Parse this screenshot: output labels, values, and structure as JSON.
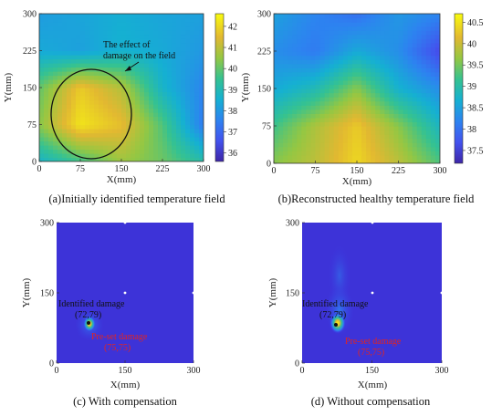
{
  "chart_data": [
    {
      "type": "heatmap",
      "panel": "a",
      "caption": "(a)Initially identified temperature field",
      "xlabel": "X(mm)",
      "ylabel": "Y(mm)",
      "xlim": [
        0,
        300
      ],
      "ylim": [
        0,
        300
      ],
      "xticks": [
        "0",
        "75",
        "150",
        "225",
        "300"
      ],
      "yticks": [
        "0",
        "75",
        "150",
        "225",
        "300"
      ],
      "colorbar_ticks": [
        "36",
        "37",
        "38",
        "39",
        "40",
        "41",
        "42"
      ],
      "colorbar_range": [
        35.6,
        42.6
      ],
      "grid_x": [
        0,
        75,
        150,
        225,
        300
      ],
      "grid_y": [
        0,
        75,
        150,
        225,
        300
      ],
      "values": [
        [
          38.7,
          39.6,
          40.6,
          40.1,
          39.2
        ],
        [
          40.4,
          42.2,
          41.6,
          39.8,
          37.4
        ],
        [
          40.0,
          41.8,
          40.9,
          38.7,
          37.6
        ],
        [
          38.4,
          38.2,
          38.6,
          38.4,
          38.0
        ],
        [
          38.1,
          38.3,
          38.5,
          38.3,
          38.2
        ]
      ],
      "annotation": [
        "The effect of",
        "damage on the field"
      ]
    },
    {
      "type": "heatmap",
      "panel": "b",
      "caption": "(b)Reconstructed healthy temperature field",
      "xlabel": "X(mm)",
      "ylabel": "Y(mm)",
      "xlim": [
        0,
        300
      ],
      "ylim": [
        0,
        300
      ],
      "xticks": [
        "0",
        "75",
        "150",
        "225",
        "300"
      ],
      "yticks": [
        "0",
        "75",
        "150",
        "225",
        "300"
      ],
      "colorbar_ticks": [
        "37.5",
        "38",
        "38.5",
        "39",
        "39.5",
        "40",
        "40.5"
      ],
      "colorbar_range": [
        37.2,
        40.7
      ],
      "grid_x": [
        0,
        75,
        150,
        225,
        300
      ],
      "grid_y": [
        0,
        75,
        150,
        225,
        300
      ],
      "values": [
        [
          39.6,
          39.9,
          40.4,
          39.9,
          39.3
        ],
        [
          39.2,
          39.8,
          40.3,
          39.6,
          38.8
        ],
        [
          38.6,
          38.9,
          39.6,
          38.7,
          38.3
        ],
        [
          38.3,
          38.1,
          38.6,
          38.3,
          37.6
        ],
        [
          38.5,
          38.2,
          38.0,
          38.4,
          38.2
        ]
      ]
    },
    {
      "type": "heatmap",
      "panel": "c",
      "caption": "(c) With compensation",
      "xlabel": "X(mm)",
      "ylabel": "Y(mm)",
      "xlim": [
        0,
        300
      ],
      "ylim": [
        0,
        300
      ],
      "xticks": [
        "0",
        "150",
        "300"
      ],
      "yticks": [
        "0",
        "150",
        "300"
      ],
      "identified_damage": {
        "x": 72,
        "y": 79,
        "label": "Identified damage",
        "coord": "(72,79)"
      },
      "preset_damage": {
        "x": 75,
        "y": 75,
        "label": "Pre-set damage",
        "coord": "(75,75)"
      }
    },
    {
      "type": "heatmap",
      "panel": "d",
      "caption": "(d) Without compensation",
      "xlabel": "X(mm)",
      "ylabel": "Y(mm)",
      "xlim": [
        0,
        300
      ],
      "ylim": [
        0,
        300
      ],
      "xticks": [
        "0",
        "150",
        "300"
      ],
      "yticks": [
        "0",
        "150",
        "300"
      ],
      "identified_damage": {
        "x": 72,
        "y": 79,
        "label": "Identified damage",
        "coord": "(72,79)"
      },
      "preset_damage": {
        "x": 75,
        "y": 75,
        "label": "Pre-set damage",
        "coord": "(75,75)"
      }
    }
  ]
}
